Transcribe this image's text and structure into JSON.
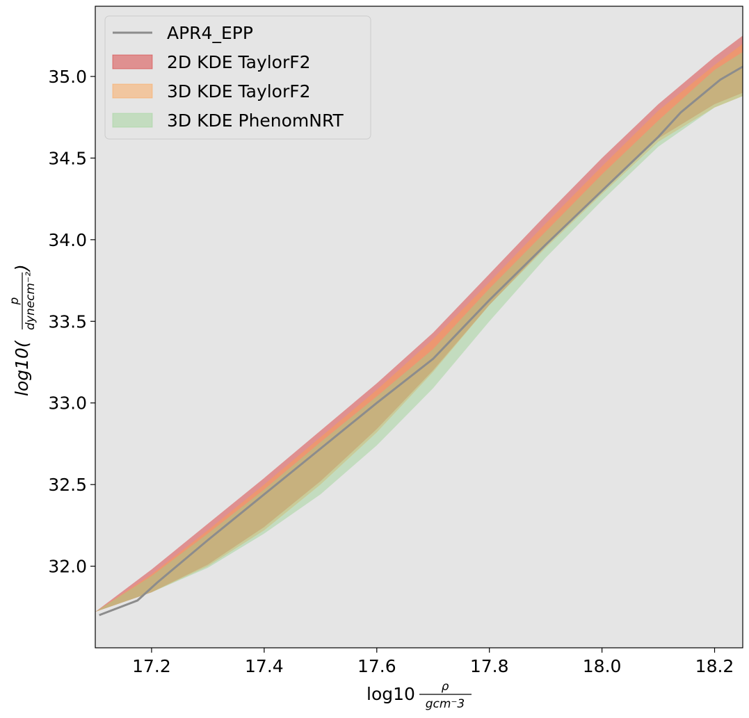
{
  "chart_data": {
    "type": "area",
    "xlim": [
      17.1,
      18.25
    ],
    "ylim": [
      31.5,
      35.43
    ],
    "x_ticks": [
      "17.2",
      "17.4",
      "17.6",
      "17.8",
      "18.0",
      "18.2"
    ],
    "y_ticks": [
      "32.0",
      "32.5",
      "33.0",
      "33.5",
      "34.0",
      "34.5",
      "35.0"
    ],
    "xlabel": {
      "base": "log10",
      "num": "ρ",
      "den": "gcm⁻3"
    },
    "ylabel": {
      "base": "log10(",
      "num": "p",
      "den": "dynecm⁻²",
      "close": ")"
    },
    "background": "#e5e5e5",
    "grid": false,
    "legend_position": "upper-left",
    "legend": [
      {
        "label": "APR4_EPP",
        "kind": "line",
        "color": "#8c8c8c"
      },
      {
        "label": "2D KDE TaylorF2",
        "kind": "band",
        "color": "#d62728"
      },
      {
        "label": "3D KDE TaylorF2",
        "kind": "band",
        "color": "#ff9f4a"
      },
      {
        "label": "3D KDE PhenomNRT",
        "kind": "band",
        "color": "#98d191"
      }
    ],
    "series": [
      {
        "name": "APR4_EPP",
        "kind": "line",
        "color": "#8c8c8c",
        "x": [
          17.107,
          17.175,
          17.21,
          17.3,
          17.4,
          17.5,
          17.6,
          17.7,
          17.8,
          17.9,
          18.0,
          18.1,
          18.14,
          18.21,
          18.25
        ],
        "y": [
          31.7,
          31.79,
          31.9,
          32.16,
          32.44,
          32.72,
          33.0,
          33.27,
          33.63,
          33.97,
          34.3,
          34.63,
          34.78,
          34.98,
          35.06
        ]
      },
      {
        "name": "2D KDE TaylorF2",
        "kind": "band",
        "color": "#d62728",
        "opacity": 0.45,
        "x": [
          17.1,
          17.2,
          17.3,
          17.4,
          17.5,
          17.6,
          17.7,
          17.8,
          17.9,
          18.0,
          18.1,
          18.2,
          18.25
        ],
        "upper": [
          31.72,
          31.98,
          32.26,
          32.54,
          32.83,
          33.12,
          33.43,
          33.79,
          34.15,
          34.5,
          34.83,
          35.12,
          35.25
        ],
        "lower": [
          31.72,
          31.84,
          32.01,
          32.24,
          32.52,
          32.84,
          33.2,
          33.6,
          33.96,
          34.3,
          34.62,
          34.83,
          34.9
        ]
      },
      {
        "name": "3D KDE TaylorF2",
        "kind": "band",
        "color": "#ff9f4a",
        "opacity": 0.45,
        "x": [
          17.1,
          17.2,
          17.3,
          17.4,
          17.5,
          17.6,
          17.7,
          17.8,
          17.9,
          18.0,
          18.1,
          18.2,
          18.25
        ],
        "upper": [
          31.72,
          31.95,
          32.22,
          32.5,
          32.79,
          33.08,
          33.39,
          33.74,
          34.1,
          34.45,
          34.79,
          35.07,
          35.2
        ],
        "lower": [
          31.72,
          31.84,
          32.0,
          32.22,
          32.5,
          32.82,
          33.19,
          33.6,
          33.95,
          34.28,
          34.6,
          34.81,
          34.88
        ]
      },
      {
        "name": "3D KDE PhenomNRT",
        "kind": "band",
        "color": "#98d191",
        "opacity": 0.45,
        "x": [
          17.1,
          17.2,
          17.3,
          17.4,
          17.5,
          17.6,
          17.7,
          17.8,
          17.9,
          18.0,
          18.1,
          18.2,
          18.25
        ],
        "upper": [
          31.72,
          31.94,
          32.2,
          32.47,
          32.76,
          33.04,
          33.33,
          33.7,
          34.05,
          34.4,
          34.73,
          35.04,
          35.15
        ],
        "lower": [
          31.72,
          31.84,
          31.99,
          32.2,
          32.44,
          32.74,
          33.09,
          33.5,
          33.89,
          34.24,
          34.57,
          34.81,
          34.88
        ]
      }
    ]
  }
}
